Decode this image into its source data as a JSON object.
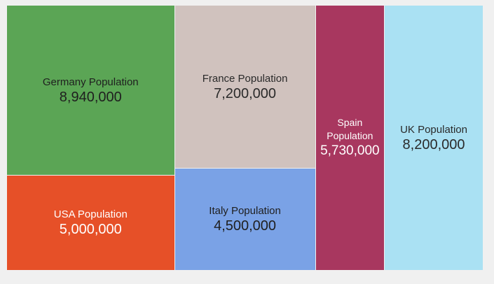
{
  "chart_data": {
    "type": "treemap",
    "title": "",
    "items": [
      {
        "name": "Germany Population",
        "value": 8940000,
        "value_label": "8,940,000",
        "color": "#5ba555",
        "text_color": "#1f1f1f"
      },
      {
        "name": "USA Population",
        "value": 5000000,
        "value_label": "5,000,000",
        "color": "#e65028",
        "text_color": "#ffffff"
      },
      {
        "name": "France Population",
        "value": 7200000,
        "value_label": "7,200,000",
        "color": "#d0c2be",
        "text_color": "#2a2a2a"
      },
      {
        "name": "Italy Population",
        "value": 4500000,
        "value_label": "4,500,000",
        "color": "#7aa2e6",
        "text_color": "#1f1f1f"
      },
      {
        "name": "Spain Population",
        "value": 5730000,
        "value_label": "5,730,000",
        "color": "#a8375f",
        "text_color": "#ffffff"
      },
      {
        "name": "UK Population",
        "value": 8200000,
        "value_label": "8,200,000",
        "color": "#aae1f3",
        "text_color": "#2a2a2a"
      }
    ],
    "layout_columns": [
      [
        "Germany Population",
        "USA Population"
      ],
      [
        "France Population",
        "Italy Population"
      ],
      [
        "Spain Population"
      ],
      [
        "UK Population"
      ]
    ]
  }
}
